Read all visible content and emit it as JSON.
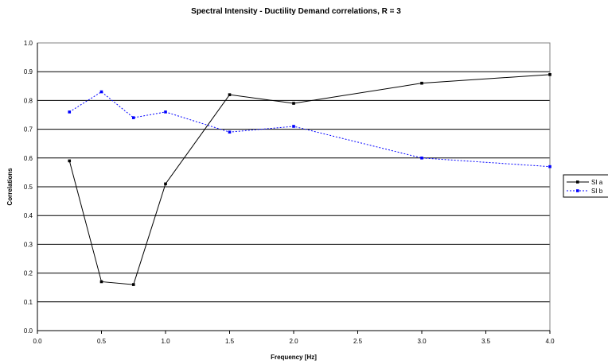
{
  "chart_data": {
    "type": "line",
    "title": "Spectral Intensity - Ductility Demand correlations, R = 3",
    "xlabel": "Frequency [Hz]",
    "ylabel": "Correlations",
    "xlim": [
      0.0,
      4.0
    ],
    "ylim": [
      0.0,
      1.0
    ],
    "x_ticks": [
      "0.0",
      "0.5",
      "1.0",
      "1.5",
      "2.0",
      "2.5",
      "3.0",
      "3.5",
      "4.0"
    ],
    "y_ticks": [
      "0.0",
      "0.1",
      "0.2",
      "0.3",
      "0.4",
      "0.5",
      "0.6",
      "0.7",
      "0.8",
      "0.9",
      "1.0"
    ],
    "grid": "horizontal",
    "legend_position": "right",
    "series": [
      {
        "name": "SI a",
        "color": "#000000",
        "line_style": "solid",
        "x": [
          0.25,
          0.5,
          0.75,
          1.0,
          1.5,
          2.0,
          3.0,
          4.0
        ],
        "values": [
          0.59,
          0.17,
          0.16,
          0.51,
          0.82,
          0.79,
          0.86,
          0.89
        ]
      },
      {
        "name": "SI b",
        "color": "#0000ff",
        "line_style": "dotted",
        "x": [
          0.25,
          0.5,
          0.75,
          1.0,
          1.5,
          2.0,
          3.0,
          4.0
        ],
        "values": [
          0.76,
          0.83,
          0.74,
          0.76,
          0.69,
          0.71,
          0.6,
          0.57
        ]
      }
    ]
  }
}
